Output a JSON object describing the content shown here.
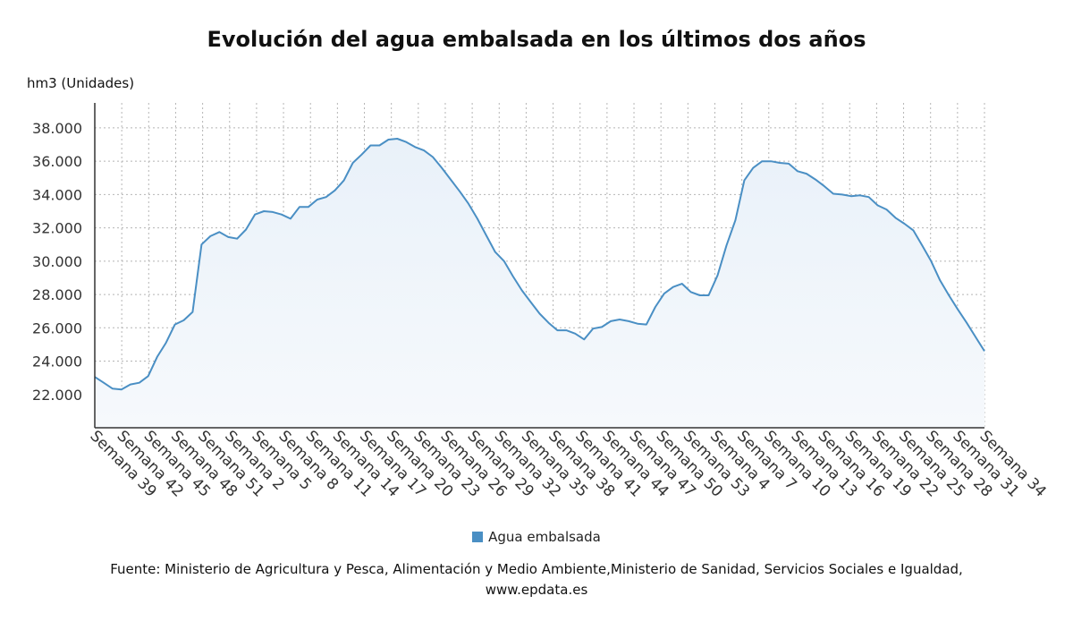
{
  "header": {
    "title": "Evolución del agua embalsada en los últimos dos años"
  },
  "legend": {
    "label": "Agua embalsada"
  },
  "footer": {
    "source": "Fuente: Ministerio de Agricultura y Pesca, Alimentación y Medio Ambiente,Ministerio de Sanidad, Servicios Sociales e Igualdad,",
    "website": "www.epdata.es"
  },
  "colors": {
    "line": "#4a8fc4",
    "area_top": "#e9f1f9",
    "area_bottom": "#f6f9fc",
    "grid": "#b5b5b5"
  },
  "chart_data": {
    "type": "area",
    "title": "Evolución del agua embalsada en los últimos dos años",
    "ylabel": "hm3 (Unidades)",
    "xlabel": "",
    "ylim": [
      20000,
      39500
    ],
    "yticks": [
      22000,
      24000,
      26000,
      28000,
      30000,
      32000,
      34000,
      36000,
      38000
    ],
    "ytick_labels": [
      "22.000",
      "24.000",
      "26.000",
      "28.000",
      "30.000",
      "32.000",
      "34.000",
      "36.000",
      "38.000"
    ],
    "grid": true,
    "legend_position": "bottom",
    "xtick_labels": [
      "Semana 39",
      "Semana 42",
      "Semana 45",
      "Semana 48",
      "Semana 51",
      "Semana 2",
      "Semana 5",
      "Semana 8",
      "Semana 11",
      "Semana 14",
      "Semana 17",
      "Semana 20",
      "Semana 23",
      "Semana 26",
      "Semana 29",
      "Semana 32",
      "Semana 35",
      "Semana 38",
      "Semana 41",
      "Semana 44",
      "Semana 47",
      "Semana 50",
      "Semana 53",
      "Semana 4",
      "Semana 7",
      "Semana 10",
      "Semana 13",
      "Semana 16",
      "Semana 19",
      "Semana 22",
      "Semana 25",
      "Semana 28",
      "Semana 31",
      "Semana 34"
    ],
    "series": [
      {
        "name": "Agua embalsada",
        "values": [
          23050,
          22700,
          22350,
          22300,
          22600,
          22700,
          23100,
          24250,
          25100,
          26200,
          26450,
          26950,
          31000,
          31500,
          31750,
          31450,
          31350,
          31900,
          32800,
          33000,
          32950,
          32800,
          32550,
          33250,
          33250,
          33700,
          33850,
          34250,
          34850,
          35900,
          36400,
          36950,
          36950,
          37300,
          37350,
          37150,
          36850,
          36650,
          36250,
          35600,
          34900,
          34200,
          33450,
          32550,
          31550,
          30550,
          30000,
          29100,
          28250,
          27550,
          26850,
          26300,
          25850,
          25850,
          25650,
          25300,
          25950,
          26050,
          26400,
          26500,
          26400,
          26250,
          26200,
          27250,
          28050,
          28450,
          28650,
          28150,
          27950,
          27950,
          29150,
          30950,
          32450,
          34850,
          35600,
          36000,
          36000,
          35900,
          35850,
          35400,
          35250,
          34900,
          34500,
          34050,
          34000,
          33900,
          33950,
          33850,
          33350,
          33100,
          32600,
          32250,
          31850,
          30950,
          30000,
          28850,
          27950,
          27100,
          26300,
          25450,
          24600
        ]
      }
    ]
  }
}
